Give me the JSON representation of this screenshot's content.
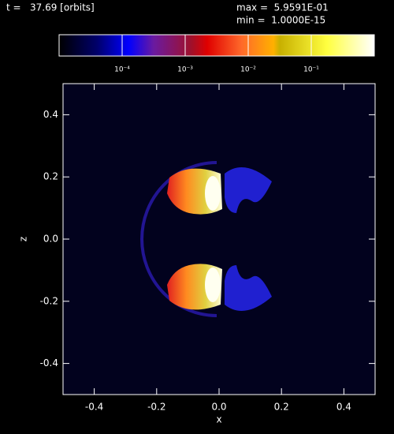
{
  "chart_data": {
    "type": "image",
    "time_label": "t =   37.69 [orbits]",
    "max_label": "max =  5.9591E-01",
    "min_label": "min =  1.0000E-15",
    "xlabel": "x",
    "ylabel": "z",
    "xlim": [
      -0.5,
      0.5
    ],
    "ylim": [
      -0.5,
      0.5
    ],
    "xticks": [
      -0.4,
      -0.2,
      {
        "value": 0,
        "label": "0.0"
      },
      0.2,
      0.4
    ],
    "yticks": [
      -0.4,
      -0.2,
      {
        "value": 0,
        "label": "0.0"
      },
      0.2,
      0.4
    ],
    "colorbar": {
      "log": true,
      "lim": [
        1e-05,
        1
      ],
      "ticks": [
        {
          "value": 0.0001,
          "label": "10⁻⁴"
        },
        {
          "value": 0.001,
          "label": "10⁻³"
        },
        {
          "value": 0.01,
          "label": "10⁻²"
        },
        {
          "value": 0.1,
          "label": "10⁻¹"
        }
      ]
    }
  }
}
